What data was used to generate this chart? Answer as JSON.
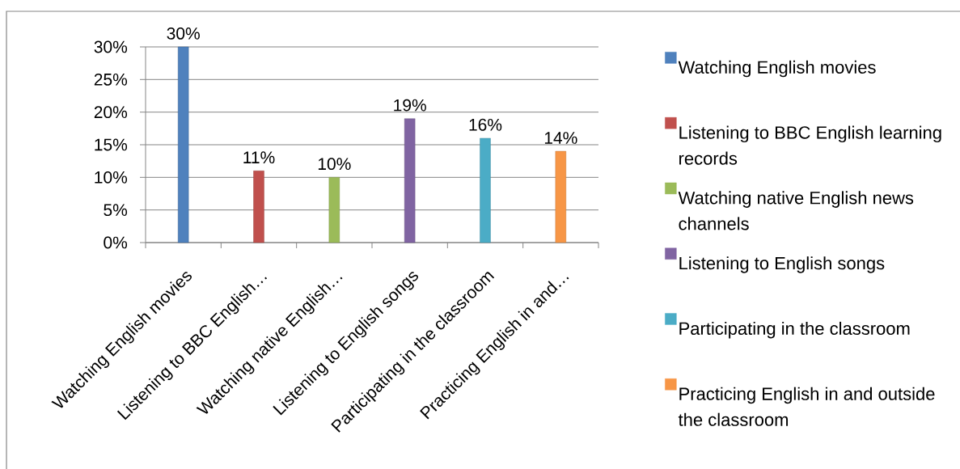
{
  "chart_data": {
    "type": "bar",
    "categories": [
      "Watching English movies",
      "Listening to BBC English…",
      "Watching native English…",
      "Listening to English songs",
      "Participating in the classroom",
      "Practicing English in and…"
    ],
    "series": [
      {
        "name": "Watching English movies",
        "color": "#4F81BD",
        "values": [
          30,
          null,
          null,
          null,
          null,
          null
        ],
        "value_labels": [
          "30%",
          null,
          null,
          null,
          null,
          null
        ]
      },
      {
        "name": "Listening to BBC English learning records",
        "color": "#C0504D",
        "values": [
          null,
          11,
          null,
          null,
          null,
          null
        ],
        "value_labels": [
          null,
          "11%",
          null,
          null,
          null,
          null
        ]
      },
      {
        "name": "Watching native English news channels",
        "color": "#9BBB59",
        "values": [
          null,
          null,
          10,
          null,
          null,
          null
        ],
        "value_labels": [
          null,
          null,
          "10%",
          null,
          null,
          null
        ]
      },
      {
        "name": "Listening to English songs",
        "color": "#8064A2",
        "values": [
          null,
          null,
          null,
          19,
          null,
          null
        ],
        "value_labels": [
          null,
          null,
          null,
          "19%",
          null,
          null
        ]
      },
      {
        "name": "Participating in the classroom",
        "color": "#4BACC6",
        "values": [
          null,
          null,
          null,
          null,
          16,
          null
        ],
        "value_labels": [
          null,
          null,
          null,
          null,
          "16%",
          null
        ]
      },
      {
        "name": "Practicing English in and outside the classroom",
        "color": "#F79646",
        "values": [
          null,
          null,
          null,
          null,
          null,
          14
        ],
        "value_labels": [
          null,
          null,
          null,
          null,
          null,
          "14%"
        ]
      }
    ],
    "ylim": [
      0,
      30
    ],
    "yticks": [
      {
        "value": 0,
        "label": "0%"
      },
      {
        "value": 5,
        "label": "5%"
      },
      {
        "value": 10,
        "label": "10%"
      },
      {
        "value": 15,
        "label": "15%"
      },
      {
        "value": 20,
        "label": "20%"
      },
      {
        "value": 25,
        "label": "25%"
      },
      {
        "value": 30,
        "label": "30%"
      }
    ],
    "grid": "y",
    "legend": "right"
  }
}
